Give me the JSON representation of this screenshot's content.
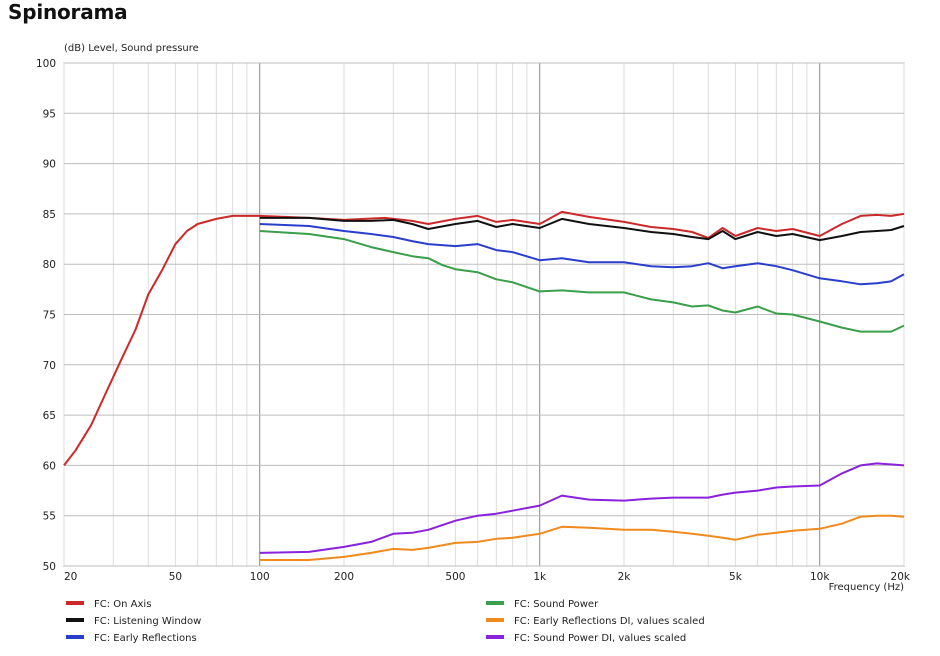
{
  "page_title": "Spinorama",
  "chart_data": {
    "type": "line",
    "xscale": "log",
    "xlim": [
      20,
      20000
    ],
    "ylim": [
      50,
      100
    ],
    "ylabel": "(dB)  Level, Sound pressure",
    "xlabel": "Frequency  (Hz)",
    "grid": true,
    "legend_position": "bottom",
    "y_ticks": [
      "50",
      "55",
      "60",
      "65",
      "70",
      "75",
      "80",
      "85",
      "90",
      "95",
      "100"
    ],
    "x_ticks": [
      {
        "v": 20,
        "label": "20"
      },
      {
        "v": 50,
        "label": "50"
      },
      {
        "v": 100,
        "label": "100"
      },
      {
        "v": 200,
        "label": "200"
      },
      {
        "v": 500,
        "label": "500"
      },
      {
        "v": 1000,
        "label": "1k"
      },
      {
        "v": 2000,
        "label": "2k"
      },
      {
        "v": 5000,
        "label": "5k"
      },
      {
        "v": 10000,
        "label": "10k"
      },
      {
        "v": 20000,
        "label": "20k"
      }
    ],
    "series": [
      {
        "name": "FC: On Axis",
        "color": "#cc2a2a",
        "points": [
          [
            20,
            60
          ],
          [
            22,
            61.5
          ],
          [
            25,
            64
          ],
          [
            28,
            67
          ],
          [
            32,
            70.5
          ],
          [
            36,
            73.5
          ],
          [
            40,
            77
          ],
          [
            45,
            79.5
          ],
          [
            50,
            82
          ],
          [
            55,
            83.3
          ],
          [
            60,
            84
          ],
          [
            70,
            84.5
          ],
          [
            80,
            84.8
          ],
          [
            100,
            84.8
          ],
          [
            150,
            84.6
          ],
          [
            200,
            84.4
          ],
          [
            280,
            84.6
          ],
          [
            350,
            84.3
          ],
          [
            400,
            84
          ],
          [
            500,
            84.5
          ],
          [
            600,
            84.8
          ],
          [
            700,
            84.2
          ],
          [
            800,
            84.4
          ],
          [
            1000,
            84
          ],
          [
            1200,
            85.2
          ],
          [
            1500,
            84.7
          ],
          [
            2000,
            84.2
          ],
          [
            2500,
            83.7
          ],
          [
            3000,
            83.5
          ],
          [
            3500,
            83.2
          ],
          [
            4000,
            82.6
          ],
          [
            4500,
            83.6
          ],
          [
            5000,
            82.8
          ],
          [
            6000,
            83.6
          ],
          [
            7000,
            83.3
          ],
          [
            8000,
            83.5
          ],
          [
            10000,
            82.8
          ],
          [
            12000,
            84
          ],
          [
            14000,
            84.8
          ],
          [
            16000,
            84.9
          ],
          [
            18000,
            84.8
          ],
          [
            20000,
            85
          ]
        ]
      },
      {
        "name": "FC: Listening Window",
        "color": "#111111",
        "points": [
          [
            100,
            84.6
          ],
          [
            150,
            84.6
          ],
          [
            200,
            84.3
          ],
          [
            250,
            84.3
          ],
          [
            300,
            84.4
          ],
          [
            350,
            84
          ],
          [
            400,
            83.5
          ],
          [
            500,
            84
          ],
          [
            600,
            84.3
          ],
          [
            700,
            83.7
          ],
          [
            800,
            84
          ],
          [
            1000,
            83.6
          ],
          [
            1200,
            84.5
          ],
          [
            1500,
            84
          ],
          [
            2000,
            83.6
          ],
          [
            2500,
            83.2
          ],
          [
            3000,
            83
          ],
          [
            3500,
            82.7
          ],
          [
            4000,
            82.5
          ],
          [
            4500,
            83.3
          ],
          [
            5000,
            82.5
          ],
          [
            6000,
            83.2
          ],
          [
            7000,
            82.8
          ],
          [
            8000,
            83
          ],
          [
            10000,
            82.4
          ],
          [
            12000,
            82.8
          ],
          [
            14000,
            83.2
          ],
          [
            16000,
            83.3
          ],
          [
            18000,
            83.4
          ],
          [
            20000,
            83.8
          ]
        ]
      },
      {
        "name": "FC: Early Reflections",
        "color": "#2a3ecc",
        "points": [
          [
            100,
            84
          ],
          [
            150,
            83.8
          ],
          [
            200,
            83.3
          ],
          [
            250,
            83
          ],
          [
            300,
            82.7
          ],
          [
            350,
            82.3
          ],
          [
            400,
            82
          ],
          [
            500,
            81.8
          ],
          [
            600,
            82
          ],
          [
            700,
            81.4
          ],
          [
            800,
            81.2
          ],
          [
            1000,
            80.4
          ],
          [
            1200,
            80.6
          ],
          [
            1500,
            80.2
          ],
          [
            2000,
            80.2
          ],
          [
            2500,
            79.8
          ],
          [
            3000,
            79.7
          ],
          [
            3500,
            79.8
          ],
          [
            4000,
            80.1
          ],
          [
            4500,
            79.6
          ],
          [
            5000,
            79.8
          ],
          [
            6000,
            80.1
          ],
          [
            7000,
            79.8
          ],
          [
            8000,
            79.4
          ],
          [
            10000,
            78.6
          ],
          [
            12000,
            78.3
          ],
          [
            14000,
            78
          ],
          [
            16000,
            78.1
          ],
          [
            18000,
            78.3
          ],
          [
            20000,
            79
          ]
        ]
      },
      {
        "name": "FC: Sound Power",
        "color": "#3a9e4a",
        "points": [
          [
            100,
            83.3
          ],
          [
            150,
            83
          ],
          [
            200,
            82.5
          ],
          [
            250,
            81.7
          ],
          [
            300,
            81.2
          ],
          [
            350,
            80.8
          ],
          [
            400,
            80.6
          ],
          [
            450,
            79.9
          ],
          [
            500,
            79.5
          ],
          [
            600,
            79.2
          ],
          [
            700,
            78.5
          ],
          [
            800,
            78.2
          ],
          [
            1000,
            77.3
          ],
          [
            1200,
            77.4
          ],
          [
            1500,
            77.2
          ],
          [
            2000,
            77.2
          ],
          [
            2500,
            76.5
          ],
          [
            3000,
            76.2
          ],
          [
            3500,
            75.8
          ],
          [
            4000,
            75.9
          ],
          [
            4500,
            75.4
          ],
          [
            5000,
            75.2
          ],
          [
            6000,
            75.8
          ],
          [
            7000,
            75.1
          ],
          [
            8000,
            75
          ],
          [
            10000,
            74.3
          ],
          [
            12000,
            73.7
          ],
          [
            14000,
            73.3
          ],
          [
            16000,
            73.3
          ],
          [
            18000,
            73.3
          ],
          [
            20000,
            73.9
          ]
        ]
      },
      {
        "name": "FC: Early Reflections DI, values scaled",
        "color": "#f08a1c",
        "points": [
          [
            100,
            50.6
          ],
          [
            150,
            50.6
          ],
          [
            200,
            50.9
          ],
          [
            250,
            51.3
          ],
          [
            300,
            51.7
          ],
          [
            350,
            51.6
          ],
          [
            400,
            51.8
          ],
          [
            500,
            52.3
          ],
          [
            600,
            52.4
          ],
          [
            700,
            52.7
          ],
          [
            800,
            52.8
          ],
          [
            1000,
            53.2
          ],
          [
            1200,
            53.9
          ],
          [
            1500,
            53.8
          ],
          [
            2000,
            53.6
          ],
          [
            2500,
            53.6
          ],
          [
            3000,
            53.4
          ],
          [
            3500,
            53.2
          ],
          [
            4000,
            53
          ],
          [
            4500,
            52.8
          ],
          [
            5000,
            52.6
          ],
          [
            6000,
            53.1
          ],
          [
            7000,
            53.3
          ],
          [
            8000,
            53.5
          ],
          [
            10000,
            53.7
          ],
          [
            12000,
            54.2
          ],
          [
            14000,
            54.9
          ],
          [
            16000,
            55
          ],
          [
            18000,
            55
          ],
          [
            20000,
            54.9
          ]
        ]
      },
      {
        "name": "FC: Sound Power DI, values scaled",
        "color": "#8a22dd",
        "points": [
          [
            100,
            51.3
          ],
          [
            150,
            51.4
          ],
          [
            200,
            51.9
          ],
          [
            250,
            52.4
          ],
          [
            300,
            53.2
          ],
          [
            350,
            53.3
          ],
          [
            400,
            53.6
          ],
          [
            500,
            54.5
          ],
          [
            600,
            55
          ],
          [
            700,
            55.2
          ],
          [
            800,
            55.5
          ],
          [
            1000,
            56
          ],
          [
            1200,
            57
          ],
          [
            1500,
            56.6
          ],
          [
            2000,
            56.5
          ],
          [
            2500,
            56.7
          ],
          [
            3000,
            56.8
          ],
          [
            3500,
            56.8
          ],
          [
            4000,
            56.8
          ],
          [
            4500,
            57.1
          ],
          [
            5000,
            57.3
          ],
          [
            6000,
            57.5
          ],
          [
            7000,
            57.8
          ],
          [
            8000,
            57.9
          ],
          [
            10000,
            58
          ],
          [
            12000,
            59.2
          ],
          [
            14000,
            60
          ],
          [
            16000,
            60.2
          ],
          [
            18000,
            60.1
          ],
          [
            20000,
            60
          ]
        ]
      }
    ]
  }
}
